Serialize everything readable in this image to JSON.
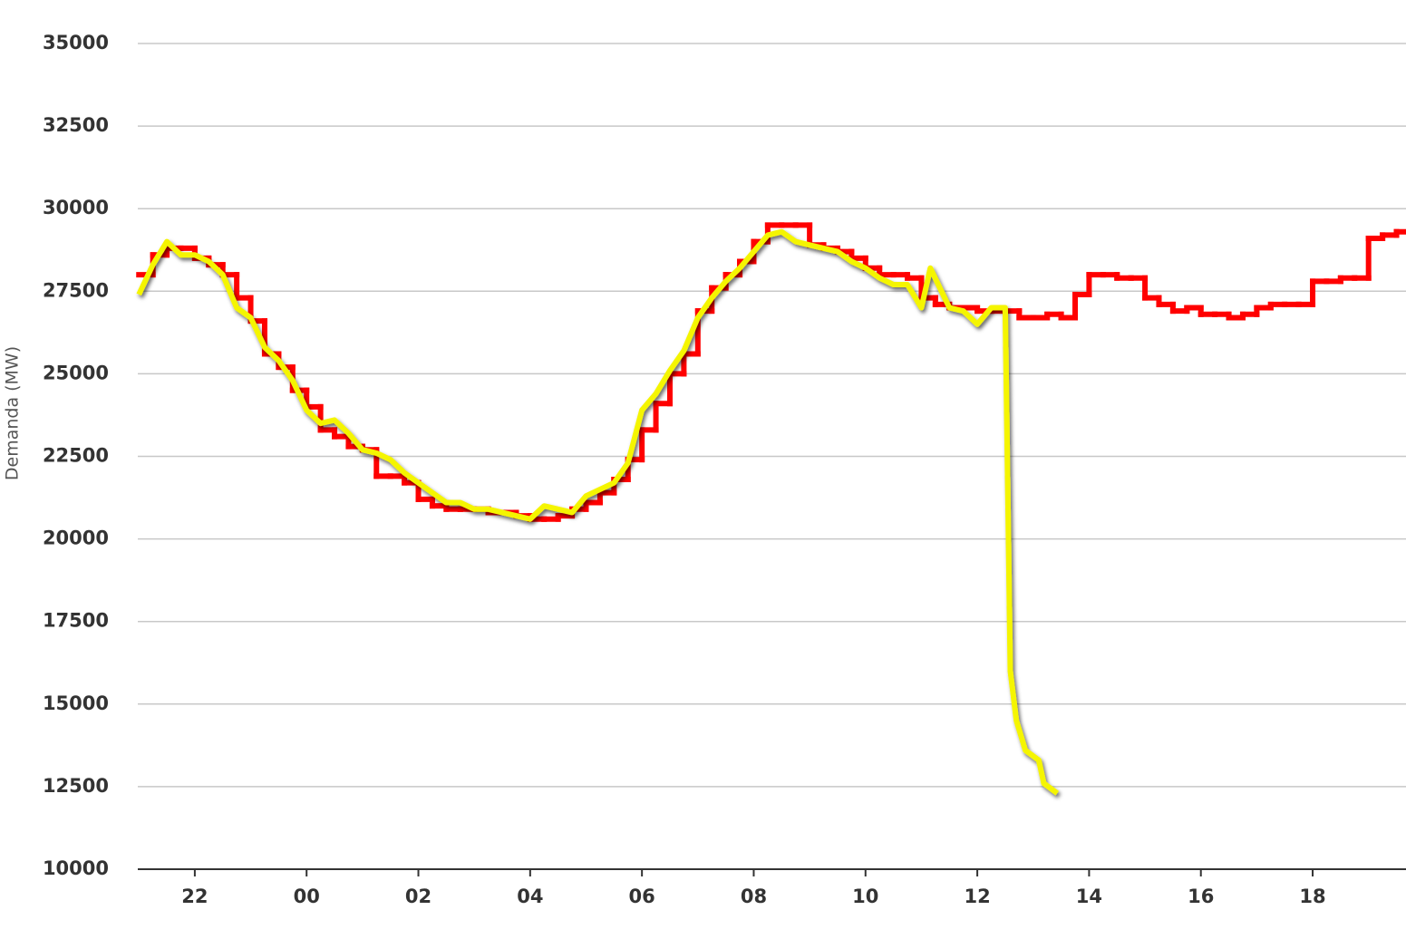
{
  "chart_data": {
    "type": "line",
    "y_label": "Demanda (MW)",
    "xlim": [
      20.98,
      43.67
    ],
    "xticks": [
      {
        "value": 22,
        "label": "22"
      },
      {
        "value": 24,
        "label": "00"
      },
      {
        "value": 26,
        "label": "02"
      },
      {
        "value": 28,
        "label": "04"
      },
      {
        "value": 30,
        "label": "06"
      },
      {
        "value": 32,
        "label": "08"
      },
      {
        "value": 34,
        "label": "10"
      },
      {
        "value": 36,
        "label": "12"
      },
      {
        "value": 38,
        "label": "14"
      },
      {
        "value": 40,
        "label": "16"
      },
      {
        "value": 42,
        "label": "18"
      }
    ],
    "ylim": [
      10000,
      35000
    ],
    "yticks": [
      10000,
      12500,
      15000,
      17500,
      20000,
      22500,
      25000,
      27500,
      30000,
      32500,
      35000
    ],
    "grid": true,
    "series": [
      {
        "color": "#ff0000",
        "step": true,
        "x": [
          21,
          21.25,
          21.5,
          21.75,
          22,
          22.25,
          22.5,
          22.75,
          23,
          23.25,
          23.5,
          23.75,
          24,
          24.25,
          24.5,
          24.75,
          25,
          25.25,
          25.5,
          25.75,
          26,
          26.25,
          26.5,
          26.75,
          27,
          27.25,
          27.5,
          27.75,
          28,
          28.25,
          28.5,
          28.75,
          29,
          29.25,
          29.5,
          29.75,
          30,
          30.25,
          30.5,
          30.75,
          31,
          31.25,
          31.5,
          31.75,
          32,
          32.25,
          32.5,
          32.75,
          33,
          33.25,
          33.5,
          33.75,
          34,
          34.25,
          34.5,
          34.75,
          35,
          35.25,
          35.5,
          35.75,
          36,
          36.25,
          36.5,
          36.75,
          37,
          37.25,
          37.5,
          37.75,
          38,
          38.25,
          38.5,
          38.75,
          39,
          39.25,
          39.5,
          39.75,
          40,
          40.25,
          40.5,
          40.75,
          41,
          41.25,
          41.5,
          41.75,
          42,
          42.25,
          42.5,
          42.75,
          43,
          43.25,
          43.5
        ],
        "values": [
          28000,
          28600,
          28800,
          28800,
          28500,
          28300,
          28000,
          27300,
          26600,
          25600,
          25200,
          24500,
          24000,
          23300,
          23100,
          22800,
          22700,
          21900,
          21900,
          21700,
          21200,
          21000,
          20900,
          20900,
          20900,
          20800,
          20800,
          20700,
          20600,
          20600,
          20700,
          20900,
          21100,
          21400,
          21800,
          22400,
          23300,
          24100,
          25000,
          25600,
          26900,
          27600,
          28000,
          28400,
          29000,
          29500,
          29500,
          29500,
          28900,
          28800,
          28700,
          28500,
          28200,
          28000,
          28000,
          27900,
          27300,
          27100,
          27000,
          27000,
          26900,
          26900,
          26900,
          26700,
          26700,
          26800,
          26700,
          27400,
          28000,
          28000,
          27900,
          27900,
          27300,
          27100,
          26900,
          27000,
          26800,
          26800,
          26700,
          26800,
          27000,
          27100,
          27100,
          27100,
          27800,
          27800,
          27900,
          27900,
          29100,
          29200,
          29300
        ]
      },
      {
        "color": "#f5f500",
        "shadow": true,
        "x": [
          21,
          21.25,
          21.5,
          21.75,
          22,
          22.25,
          22.5,
          22.75,
          23,
          23.25,
          23.5,
          23.75,
          24,
          24.25,
          24.5,
          24.75,
          25,
          25.25,
          25.5,
          25.75,
          26,
          26.25,
          26.5,
          26.75,
          27,
          27.25,
          27.5,
          27.75,
          28,
          28.25,
          28.5,
          28.75,
          29,
          29.25,
          29.5,
          29.75,
          30,
          30.25,
          30.5,
          30.75,
          31,
          31.25,
          31.5,
          31.75,
          32,
          32.25,
          32.5,
          32.75,
          33,
          33.25,
          33.5,
          33.75,
          34,
          34.25,
          34.5,
          34.75,
          35,
          35.16,
          35.5,
          35.75,
          36,
          36.25,
          36.5,
          36.59,
          36.7,
          36.86,
          37.1,
          37.19,
          37.43
        ],
        "values": [
          27400,
          28300,
          29000,
          28600,
          28600,
          28400,
          28000,
          27000,
          26700,
          25800,
          25400,
          24800,
          23900,
          23500,
          23600,
          23200,
          22700,
          22600,
          22400,
          22000,
          21700,
          21400,
          21100,
          21100,
          20900,
          20900,
          20800,
          20700,
          20600,
          21000,
          20900,
          20800,
          21300,
          21500,
          21700,
          22300,
          23900,
          24400,
          25100,
          25700,
          26700,
          27300,
          27800,
          28200,
          28700,
          29200,
          29300,
          29000,
          28900,
          28800,
          28700,
          28400,
          28200,
          27900,
          27700,
          27700,
          27000,
          28200,
          27000,
          26900,
          26500,
          27000,
          27000,
          16000,
          14500,
          13600,
          13300,
          12600,
          12300
        ]
      }
    ]
  }
}
